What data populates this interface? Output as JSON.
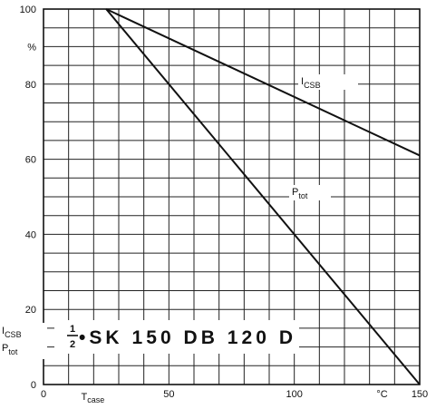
{
  "chart_data": {
    "type": "line",
    "title": {
      "fraction_num": "1",
      "fraction_den": "2",
      "text": "•SK 150 DB 120 D"
    },
    "xlabel": {
      "main": "T",
      "sub": "case"
    },
    "xunit": "°C",
    "ylabel_lines": [
      {
        "main": "I",
        "sub": "CSB"
      },
      {
        "main": "P",
        "sub": "tot"
      }
    ],
    "yunit": "%",
    "xlim": [
      0,
      150
    ],
    "ylim": [
      0,
      100
    ],
    "xticks": [
      {
        "value": 0,
        "label": "0"
      },
      {
        "value": 50,
        "label": "50"
      },
      {
        "value": 100,
        "label": "100"
      },
      {
        "value": 150,
        "label": "150"
      }
    ],
    "yticks": [
      {
        "value": 0,
        "label": "0"
      },
      {
        "value": 20,
        "label": "20"
      },
      {
        "value": 40,
        "label": "40"
      },
      {
        "value": 60,
        "label": "60"
      },
      {
        "value": 80,
        "label": "80"
      },
      {
        "value": 100,
        "label": "100"
      }
    ],
    "grid": {
      "x_step": 10,
      "y_step": 5
    },
    "series": [
      {
        "name": "I_CSB",
        "label_main": "I",
        "label_sub": "CSB",
        "x": [
          25,
          150
        ],
        "y": [
          100,
          61
        ]
      },
      {
        "name": "P_tot",
        "label_main": "P",
        "label_sub": "tot",
        "x": [
          25,
          150
        ],
        "y": [
          100,
          0
        ]
      }
    ]
  }
}
